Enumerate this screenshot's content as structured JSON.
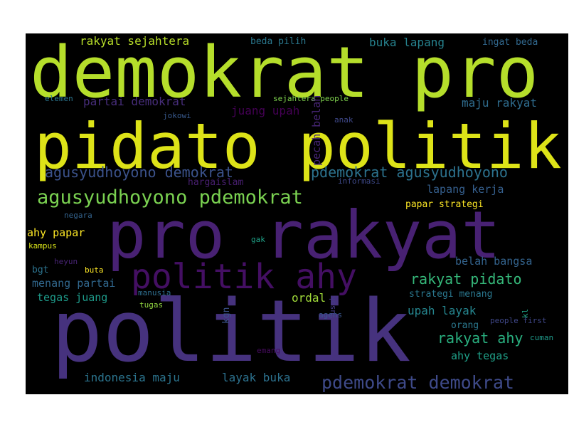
{
  "words": {
    "demokrat_pro": {
      "text": "demokrat pro",
      "color": "#b5de2b"
    },
    "pidato_politik": {
      "text": "pidato politik",
      "color": "#dde318"
    },
    "pro_rakyat": {
      "text": "pro rakyat",
      "color": "#482173"
    },
    "politik": {
      "text": "politik",
      "color": "#46327e"
    },
    "politik_ahy": {
      "text": "politik ahy",
      "color": "#440f63"
    },
    "agusyudhoyono_pdemokrat": {
      "text": "agusyudhoyono pdemokrat",
      "color": "#7ad151"
    },
    "agusyudhoyono_demokrat": {
      "text": "agusyudhoyono demokrat",
      "color": "#3b528b"
    },
    "pdemokrat_agusyudhoyono": {
      "text": "pdemokrat agusyudhoyono",
      "color": "#2c728e"
    },
    "pdemokrat_demokrat": {
      "text": "pdemokrat demokrat",
      "color": "#3e4a89"
    },
    "rakyat_sejahtera": {
      "text": "rakyat sejahtera",
      "color": "#b8de29"
    },
    "beda_pilih": {
      "text": "beda pilih",
      "color": "#2a788e"
    },
    "buka_lapang": {
      "text": "buka lapang",
      "color": "#26828e"
    },
    "ingat_beda": {
      "text": "ingat beda",
      "color": "#31688e"
    },
    "partai_demokrat": {
      "text": "partai demokrat",
      "color": "#472d7b"
    },
    "maju_rakyat": {
      "text": "maju rakyat",
      "color": "#2f6c8e"
    },
    "juang_upah": {
      "text": "juang upah",
      "color": "#440154"
    },
    "elemen": {
      "text": "elemen",
      "color": "#2b758e"
    },
    "sejahtera_people": {
      "text": "sejahtera people",
      "color": "#7fd34e"
    },
    "jokowi": {
      "text": "jokowi",
      "color": "#38598c"
    },
    "anak": {
      "text": "anak",
      "color": "#3f4889"
    },
    "pecah_belah": {
      "text": "pecah belah",
      "color": "#482677"
    },
    "hargaislam": {
      "text": "hargaislam",
      "color": "#481f70"
    },
    "informasi": {
      "text": "informasi",
      "color": "#3e4989"
    },
    "lapang_kerja": {
      "text": "lapang kerja",
      "color": "#355f8d"
    },
    "papar_strategi": {
      "text": "papar strategi",
      "color": "#fde725"
    },
    "negara": {
      "text": "negara",
      "color": "#33638d"
    },
    "ahy_papar": {
      "text": "ahy papar",
      "color": "#fde725"
    },
    "kampus": {
      "text": "kampus",
      "color": "#d8e219"
    },
    "gak": {
      "text": "gak",
      "color": "#1fa187"
    },
    "heyun": {
      "text": "heyun",
      "color": "#482475"
    },
    "bgt": {
      "text": "bgt",
      "color": "#2c738e"
    },
    "buta": {
      "text": "buta",
      "color": "#fde725"
    },
    "belah_bangsa": {
      "text": "belah bangsa",
      "color": "#33638d"
    },
    "rakyat_pidato": {
      "text": "rakyat pidato",
      "color": "#35b779"
    },
    "menang_partai": {
      "text": "menang partai",
      "color": "#31688e"
    },
    "manusia": {
      "text": "manusia",
      "color": "#2e6e8e"
    },
    "tegas_juang": {
      "text": "tegas juang",
      "color": "#1e9b8a"
    },
    "ordal": {
      "text": "ordal",
      "color": "#a0da39"
    },
    "strategi_menang": {
      "text": "strategi menang",
      "color": "#2a778e"
    },
    "tugas": {
      "text": "tugas",
      "color": "#93d741"
    },
    "kgn": {
      "text": "kgn",
      "color": "#3b528b"
    },
    "usok": {
      "text": "usok",
      "color": "#443983"
    },
    "upah_layak": {
      "text": "upah layak",
      "color": "#25858e"
    },
    "kl": {
      "text": "kl",
      "color": "#20a486"
    },
    "rakyat_ahy": {
      "text": "rakyat ahy",
      "color": "#29af7f"
    },
    "people_first": {
      "text": "people first",
      "color": "#3f4788"
    },
    "agens": {
      "text": "agens",
      "color": "#39568c"
    },
    "orang": {
      "text": "orang",
      "color": "#2a788e"
    },
    "ahy_tegas": {
      "text": "ahy tegas",
      "color": "#1fa088"
    },
    "emang": {
      "text": "emang",
      "color": "#460b5e"
    },
    "cuman": {
      "text": "cuman",
      "color": "#1f9a8a"
    },
    "indonesia_maju": {
      "text": "indonesia maju",
      "color": "#2b748e"
    },
    "layak_buka": {
      "text": "layak buka",
      "color": "#2c718e"
    }
  }
}
